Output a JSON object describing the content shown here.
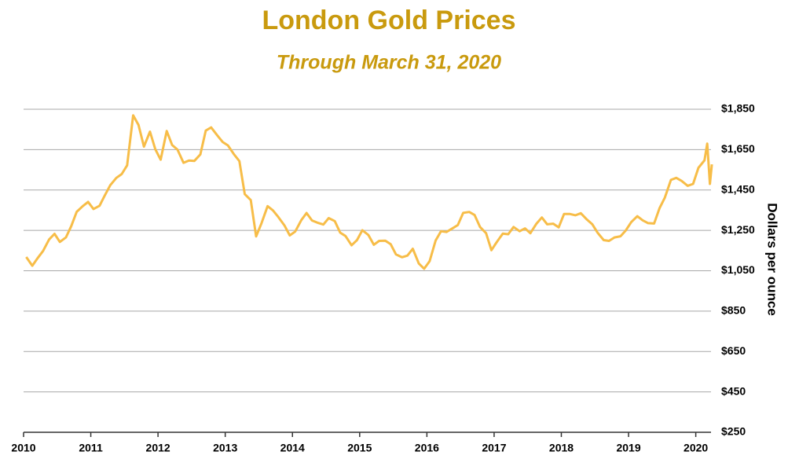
{
  "chart_data": {
    "type": "line",
    "title": "London Gold Prices",
    "subtitle": "Through March 31, 2020",
    "y_label": "Dollars per ounce",
    "color": "#f7bd48",
    "grid": true,
    "xlim": [
      2010,
      2020.25
    ],
    "xticks": [
      2010,
      2011,
      2012,
      2013,
      2014,
      2015,
      2016,
      2017,
      2018,
      2019,
      2020
    ],
    "ylim": [
      250,
      1850
    ],
    "yticks": [
      {
        "value": 250,
        "label": "$250"
      },
      {
        "value": 450,
        "label": "$450"
      },
      {
        "value": 650,
        "label": "$650"
      },
      {
        "value": 850,
        "label": "$850"
      },
      {
        "value": 1050,
        "label": "$1,050"
      },
      {
        "value": 1250,
        "label": "$1,250"
      },
      {
        "value": 1450,
        "label": "$1,450"
      },
      {
        "value": 1650,
        "label": "$1,650"
      },
      {
        "value": 1850,
        "label": "$1,850"
      }
    ],
    "x": [
      2010.04,
      2010.13,
      2010.21,
      2010.29,
      2010.38,
      2010.46,
      2010.54,
      2010.63,
      2010.71,
      2010.79,
      2010.88,
      2010.96,
      2011.04,
      2011.13,
      2011.21,
      2011.29,
      2011.38,
      2011.46,
      2011.54,
      2011.63,
      2011.71,
      2011.79,
      2011.88,
      2011.96,
      2012.04,
      2012.13,
      2012.21,
      2012.29,
      2012.38,
      2012.46,
      2012.54,
      2012.63,
      2012.71,
      2012.79,
      2012.88,
      2012.96,
      2013.04,
      2013.13,
      2013.21,
      2013.29,
      2013.38,
      2013.46,
      2013.54,
      2013.63,
      2013.71,
      2013.79,
      2013.88,
      2013.96,
      2014.04,
      2014.13,
      2014.21,
      2014.29,
      2014.38,
      2014.46,
      2014.54,
      2014.63,
      2014.71,
      2014.79,
      2014.88,
      2014.96,
      2015.04,
      2015.13,
      2015.21,
      2015.29,
      2015.38,
      2015.46,
      2015.54,
      2015.63,
      2015.71,
      2015.79,
      2015.88,
      2015.96,
      2016.04,
      2016.13,
      2016.21,
      2016.29,
      2016.38,
      2016.46,
      2016.54,
      2016.63,
      2016.71,
      2016.79,
      2016.88,
      2016.96,
      2017.04,
      2017.13,
      2017.21,
      2017.29,
      2017.38,
      2017.46,
      2017.54,
      2017.63,
      2017.71,
      2017.79,
      2017.88,
      2017.96,
      2018.04,
      2018.13,
      2018.21,
      2018.29,
      2018.38,
      2018.46,
      2018.54,
      2018.63,
      2018.71,
      2018.79,
      2018.88,
      2018.96,
      2019.04,
      2019.13,
      2019.21,
      2019.29,
      2019.38,
      2019.46,
      2019.54,
      2019.63,
      2019.71,
      2019.79,
      2019.88,
      2019.96,
      2020.04,
      2020.13,
      2020.17,
      2020.21,
      2020.24
    ],
    "values": [
      1118,
      1075,
      1113,
      1148,
      1205,
      1233,
      1193,
      1215,
      1271,
      1342,
      1370,
      1391,
      1356,
      1372,
      1424,
      1474,
      1510,
      1529,
      1572,
      1820,
      1772,
      1665,
      1739,
      1652,
      1600,
      1742,
      1673,
      1650,
      1585,
      1596,
      1594,
      1626,
      1744,
      1760,
      1721,
      1688,
      1671,
      1627,
      1593,
      1430,
      1400,
      1220,
      1286,
      1370,
      1349,
      1316,
      1275,
      1225,
      1244,
      1300,
      1336,
      1299,
      1287,
      1279,
      1311,
      1296,
      1239,
      1222,
      1176,
      1202,
      1251,
      1227,
      1179,
      1198,
      1199,
      1182,
      1131,
      1117,
      1125,
      1159,
      1086,
      1060,
      1097,
      1200,
      1246,
      1242,
      1260,
      1276,
      1337,
      1341,
      1326,
      1267,
      1236,
      1152,
      1192,
      1234,
      1231,
      1267,
      1246,
      1260,
      1236,
      1283,
      1314,
      1280,
      1283,
      1265,
      1331,
      1331,
      1325,
      1335,
      1304,
      1281,
      1238,
      1202,
      1198,
      1215,
      1221,
      1250,
      1291,
      1320,
      1300,
      1286,
      1284,
      1359,
      1413,
      1500,
      1510,
      1495,
      1471,
      1480,
      1560,
      1597,
      1680,
      1480,
      1577
    ]
  }
}
